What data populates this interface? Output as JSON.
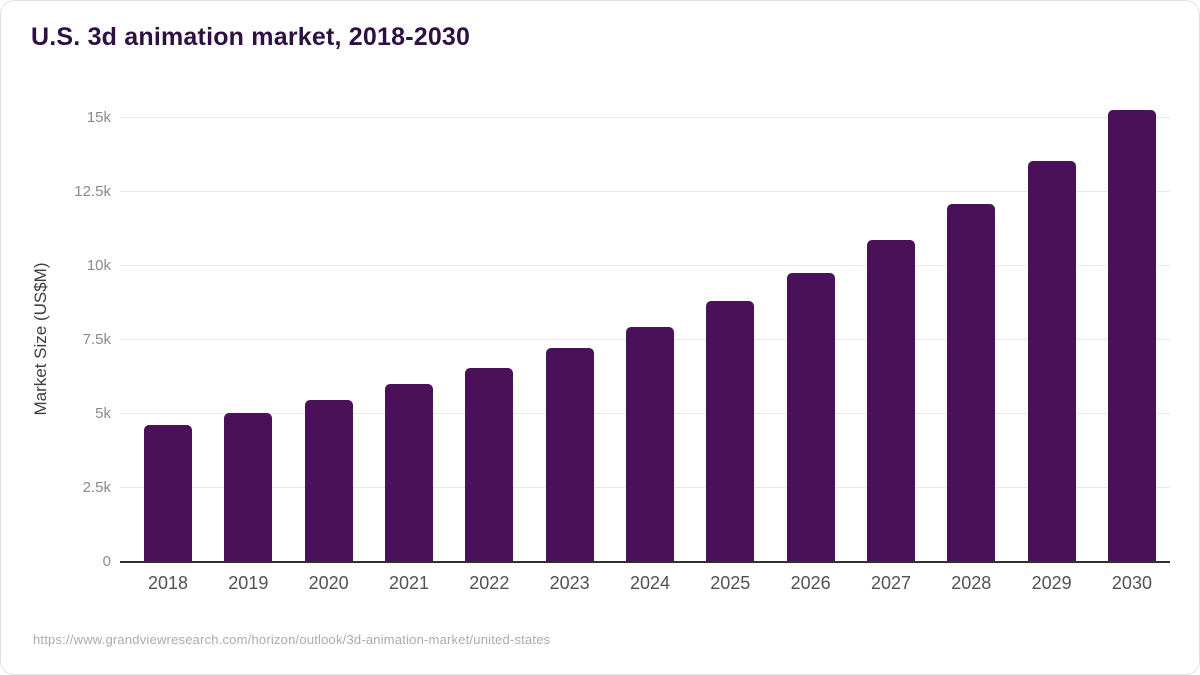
{
  "page": {
    "title": "U.S. 3d animation market, 2018-2030"
  },
  "chart_data": {
    "type": "bar",
    "title": "U.S. 3d animation market, 2018-2030",
    "xlabel": "",
    "ylabel": "Market Size (US$M)",
    "categories": [
      "2018",
      "2019",
      "2020",
      "2021",
      "2022",
      "2023",
      "2024",
      "2025",
      "2026",
      "2027",
      "2028",
      "2029",
      "2030"
    ],
    "values": [
      4640,
      5030,
      5460,
      5990,
      6540,
      7210,
      7930,
      8800,
      9750,
      10860,
      12080,
      13540,
      15250
    ],
    "ylim": [
      0,
      15500
    ],
    "yticks": [
      {
        "value": 0,
        "label": "0"
      },
      {
        "value": 2500,
        "label": "2.5k"
      },
      {
        "value": 5000,
        "label": "5k"
      },
      {
        "value": 7500,
        "label": "7.5k"
      },
      {
        "value": 10000,
        "label": "10k"
      },
      {
        "value": 12500,
        "label": "12.5k"
      },
      {
        "value": 15000,
        "label": "15k"
      }
    ],
    "grid": true,
    "legend": false
  },
  "footer": {
    "source_url": "https://www.grandviewresearch.com/horizon/outlook/3d-animation-market/united-states"
  },
  "colors": {
    "bar": "#4a1158",
    "title": "#2e1043",
    "axis_line": "#303030",
    "gridline": "#e8e8e8",
    "y_tick_label": "#8a8a8a",
    "x_tick_label": "#525252",
    "y_axis_title": "#3d3d3d",
    "footer_text": "#ababab",
    "background": "#ffffff"
  }
}
